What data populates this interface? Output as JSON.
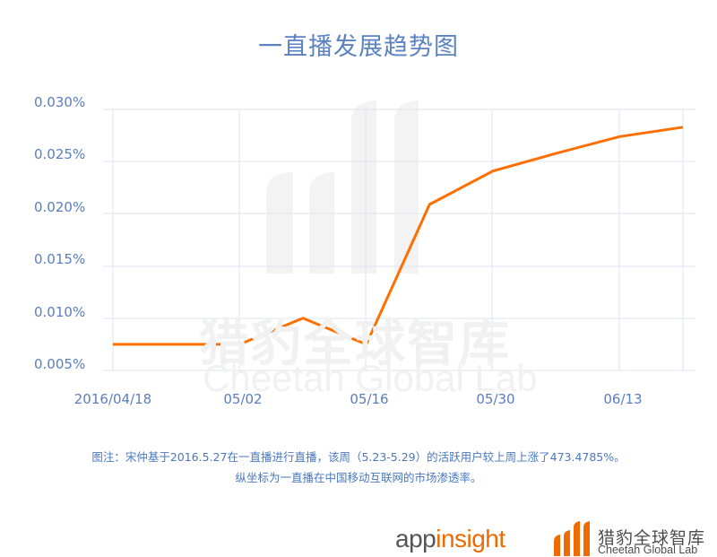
{
  "title": "一直播发展趋势图",
  "chart_data": {
    "type": "line",
    "title": "一直播发展趋势图",
    "xlabel": "",
    "ylabel": "",
    "x": [
      "2016/04/18",
      "04/25",
      "05/02",
      "05/09",
      "05/16",
      "05/23",
      "05/30",
      "06/06",
      "06/13",
      "06/20"
    ],
    "series": [
      {
        "name": "一直播市场渗透率",
        "color": "#ff6f00",
        "values": [
          0.0075,
          0.0075,
          0.0075,
          0.01,
          0.0075,
          0.0209,
          0.0241,
          0.0258,
          0.0274,
          0.0283
        ]
      }
    ],
    "xticks": [
      "2016/04/18",
      "05/02",
      "05/16",
      "05/30",
      "06/13"
    ],
    "yticks": [
      "0.005%",
      "0.010%",
      "0.015%",
      "0.020%",
      "0.025%",
      "0.030%"
    ],
    "ylim": [
      0.005,
      0.03
    ],
    "yunit": "%",
    "grid": true,
    "legend": "none"
  },
  "y_axis": {
    "labels": [
      "0.030%",
      "0.025%",
      "0.020%",
      "0.015%",
      "0.010%",
      "0.005%"
    ]
  },
  "x_axis": {
    "labels": [
      "2016/04/18",
      "05/02",
      "05/16",
      "05/30",
      "06/13"
    ]
  },
  "note": {
    "line1": "图注：宋仲基于2016.5.27在一直播进行直播，该周（5.23-5.29）的活跃用户较上周上涨了473.4785%。",
    "line2": "纵坐标为一直播在中国移动互联网的市场渗透率。"
  },
  "watermark": {
    "cn": "猎豹全球智库",
    "en": "Cheetah Global Lab"
  },
  "logos": {
    "appinsight_part1": "app",
    "appinsight_part2": "insight",
    "cheetah_cn": "猎豹全球智库",
    "cheetah_en": "Cheetah Global Lab"
  },
  "colors": {
    "line": "#ff6f00",
    "axis_text": "#5a7ebe",
    "grid": "#dde3ef",
    "brand_orange": "#ef6a00"
  }
}
